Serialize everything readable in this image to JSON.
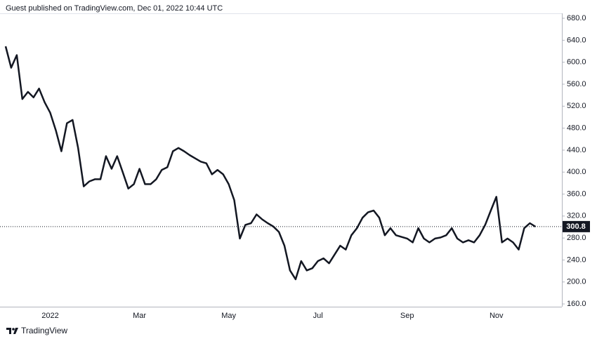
{
  "header": {
    "text": "Guest published on TradingView.com, Dec 01, 2022 10:44 UTC"
  },
  "footer": {
    "brand": "TradingView"
  },
  "chart_data": {
    "type": "line",
    "categories": [
      null,
      null,
      null,
      null,
      null,
      null,
      null,
      null,
      "2022",
      null,
      null,
      null,
      null,
      null,
      null,
      null,
      null,
      null,
      null,
      null,
      null,
      null,
      null,
      null,
      "Mar",
      null,
      null,
      null,
      null,
      null,
      null,
      null,
      null,
      null,
      null,
      null,
      null,
      null,
      null,
      null,
      "May",
      null,
      null,
      null,
      null,
      null,
      null,
      null,
      null,
      null,
      null,
      null,
      null,
      null,
      null,
      null,
      "Jul",
      null,
      null,
      null,
      null,
      null,
      null,
      null,
      null,
      null,
      null,
      null,
      null,
      null,
      null,
      null,
      "Sep",
      null,
      null,
      null,
      null,
      null,
      null,
      null,
      null,
      null,
      null,
      null,
      null,
      null,
      null,
      null,
      "Nov",
      null,
      null,
      null,
      null,
      null,
      null,
      null
    ],
    "series": [
      {
        "color": "#131722",
        "values": [
          629,
          590,
          613,
          533,
          546,
          536,
          552,
          527,
          508,
          476,
          438,
          489,
          495,
          444,
          374,
          383,
          387,
          387,
          429,
          406,
          429,
          400,
          370,
          378,
          406,
          378,
          378,
          387,
          404,
          409,
          438,
          444,
          438,
          431,
          425,
          419,
          416,
          396,
          404,
          396,
          378,
          349,
          279,
          304,
          307,
          323,
          314,
          307,
          301,
          291,
          266,
          221,
          205,
          238,
          221,
          225,
          238,
          243,
          234,
          250,
          266,
          259,
          285,
          298,
          317,
          327,
          330,
          317,
          285,
          298,
          285,
          282,
          279,
          272,
          298,
          279,
          272,
          279,
          281,
          285,
          298,
          279,
          272,
          276,
          272,
          285,
          304,
          330,
          355,
          272,
          279,
          272,
          259,
          298,
          307,
          300.8
        ]
      }
    ],
    "last_value": 300.8,
    "ylim": [
      155,
      689
    ],
    "yticks": [
      {
        "value": 160,
        "label": "160.0"
      },
      {
        "value": 200,
        "label": "200.0"
      },
      {
        "value": 240,
        "label": "240.0"
      },
      {
        "value": 280,
        "label": "280.0"
      },
      {
        "value": 320,
        "label": "320.0"
      },
      {
        "value": 360,
        "label": "360.0"
      },
      {
        "value": 400,
        "label": "400.0"
      },
      {
        "value": 440,
        "label": "440.0"
      },
      {
        "value": 480,
        "label": "480.0"
      },
      {
        "value": 520,
        "label": "520.0"
      },
      {
        "value": 560,
        "label": "560.0"
      },
      {
        "value": 600,
        "label": "600.0"
      },
      {
        "value": 640,
        "label": "640.0"
      },
      {
        "value": 680,
        "label": "680.0"
      }
    ],
    "grid": false
  }
}
